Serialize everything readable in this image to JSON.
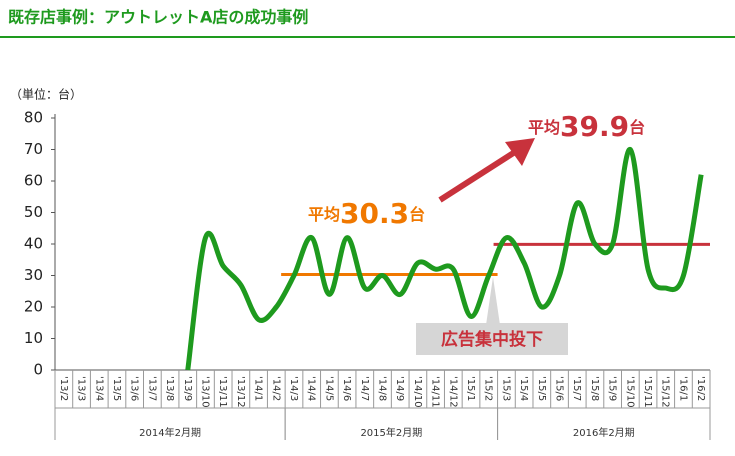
{
  "chart_data": {
    "type": "line",
    "title": "既存店事例：アウトレットA店の成功事例",
    "unit_label": "（単位：台）",
    "categories": [
      "'13/2",
      "'13/3",
      "'13/4",
      "'13/5",
      "'13/6",
      "'13/7",
      "'13/8",
      "'13/9",
      "'13/10",
      "'13/11",
      "'13/12",
      "'14/1",
      "'14/2",
      "'14/3",
      "'14/4",
      "'14/5",
      "'14/6",
      "'14/7",
      "'14/8",
      "'14/9",
      "'14/10",
      "'14/11",
      "'14/12",
      "'15/1",
      "'15/2",
      "'15/3",
      "'15/4",
      "'15/5",
      "'15/6",
      "'15/7",
      "'15/8",
      "'15/9",
      "'15/10",
      "'15/11",
      "'15/12",
      "'16/1",
      "'16/2"
    ],
    "series": [
      {
        "color": "#1e9a1e",
        "values": [
          null,
          null,
          null,
          null,
          null,
          null,
          null,
          0,
          42,
          33,
          27,
          16,
          20,
          30,
          42,
          24,
          42,
          26,
          30,
          24,
          34,
          32,
          32,
          17,
          30,
          42,
          34,
          20,
          30,
          53,
          40,
          40,
          70,
          32,
          26,
          30,
          62
        ]
      }
    ],
    "ylim": [
      0,
      80
    ],
    "yticks": [
      0,
      10,
      20,
      30,
      40,
      50,
      60,
      70,
      80
    ],
    "averages": [
      {
        "prefix": "平均",
        "value": 30.3,
        "unit": "台",
        "from": "'14/3",
        "to": "'15/2",
        "color": "#f07800"
      },
      {
        "prefix": "平均",
        "value": 39.9,
        "unit": "台",
        "from": "'15/3",
        "to": "'16/2",
        "color": "#c8323c"
      }
    ],
    "annotation": "広告集中投下",
    "periods": [
      {
        "label": "2014年2月期",
        "from": "'13/2",
        "to": "'14/2"
      },
      {
        "label": "2015年2月期",
        "from": "'14/3",
        "to": "'15/2"
      },
      {
        "label": "2016年2月期",
        "from": "'15/3",
        "to": "'16/2"
      }
    ]
  }
}
